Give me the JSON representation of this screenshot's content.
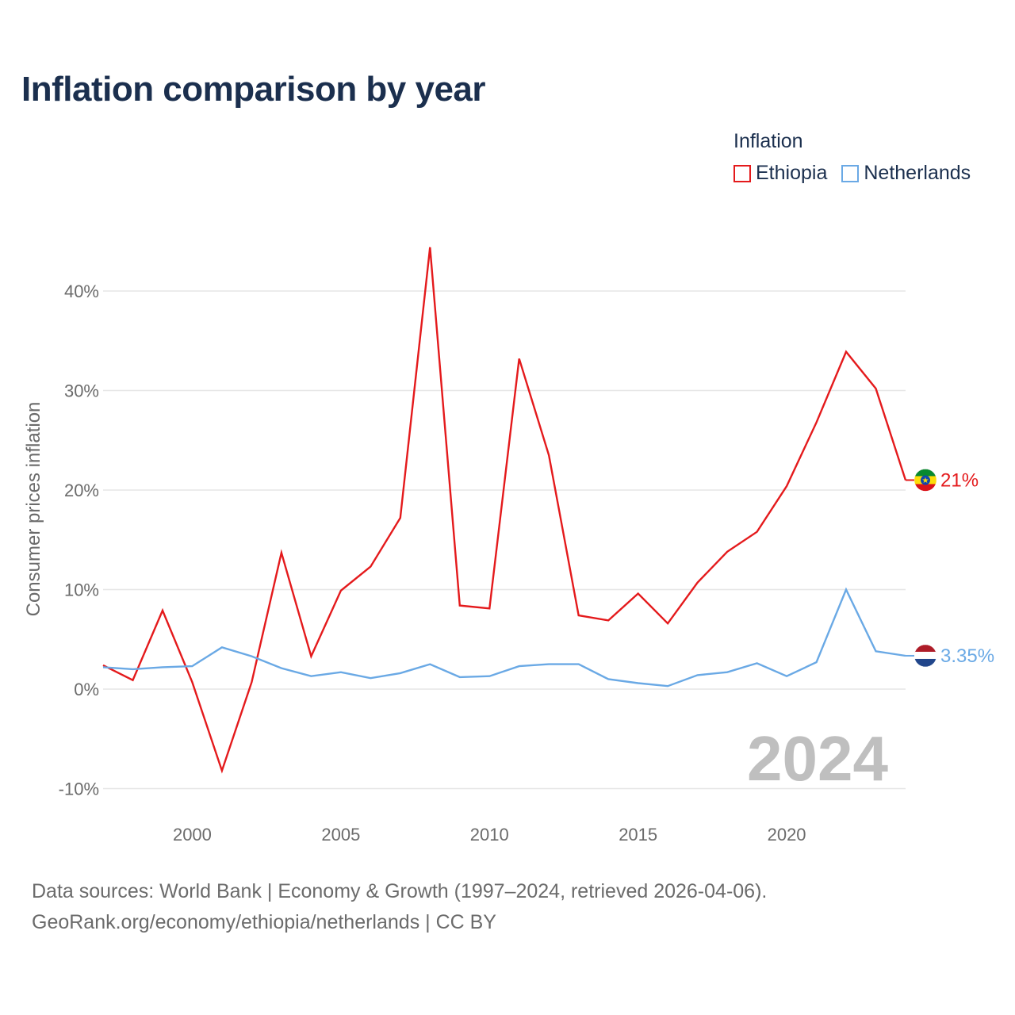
{
  "title": "Inflation comparison by year",
  "legend": {
    "title": "Inflation"
  },
  "footer": {
    "line1": "Data sources: World Bank | Economy & Growth (1997–2024, retrieved 2026-04-06).",
    "line2": "GeoRank.org/economy/ethiopia/netherlands | CC BY"
  },
  "chart_data": {
    "type": "line",
    "title": "Inflation comparison by year",
    "xlabel": "",
    "ylabel": "Consumer prices inflation",
    "x": [
      1997,
      1998,
      1999,
      2000,
      2001,
      2002,
      2003,
      2004,
      2005,
      2006,
      2007,
      2008,
      2009,
      2010,
      2011,
      2012,
      2013,
      2014,
      2015,
      2016,
      2017,
      2018,
      2019,
      2020,
      2021,
      2022,
      2023,
      2024
    ],
    "xlim": [
      1997,
      2024
    ],
    "ylim": [
      -10,
      44
    ],
    "xticks": [
      2000,
      2005,
      2010,
      2015,
      2020
    ],
    "xtick_labels": [
      "2000",
      "2005",
      "2010",
      "2015",
      "2020"
    ],
    "yticks": [
      -10,
      0,
      10,
      20,
      30,
      40
    ],
    "ytick_labels": [
      "-10%",
      "0%",
      "10%",
      "20%",
      "30%",
      "40%"
    ],
    "grid": true,
    "legend_position": "top-right",
    "year_marker": "2024",
    "series": [
      {
        "name": "Ethiopia",
        "color": "#e41a1c",
        "end_label": "21%",
        "values": [
          2.4,
          0.9,
          7.9,
          0.7,
          -8.2,
          0.7,
          13.7,
          3.3,
          9.9,
          12.3,
          17.2,
          44.4,
          8.4,
          8.1,
          33.2,
          23.5,
          7.4,
          6.9,
          9.6,
          6.6,
          10.7,
          13.8,
          15.8,
          20.4,
          26.8,
          33.9,
          30.2,
          21.0
        ]
      },
      {
        "name": "Netherlands",
        "color": "#6aa9e5",
        "end_label": "3.35%",
        "values": [
          2.2,
          2.0,
          2.2,
          2.3,
          4.2,
          3.3,
          2.1,
          1.3,
          1.7,
          1.1,
          1.6,
          2.5,
          1.2,
          1.3,
          2.3,
          2.5,
          2.5,
          1.0,
          0.6,
          0.3,
          1.4,
          1.7,
          2.6,
          1.3,
          2.7,
          10.0,
          3.8,
          3.35
        ]
      }
    ]
  }
}
